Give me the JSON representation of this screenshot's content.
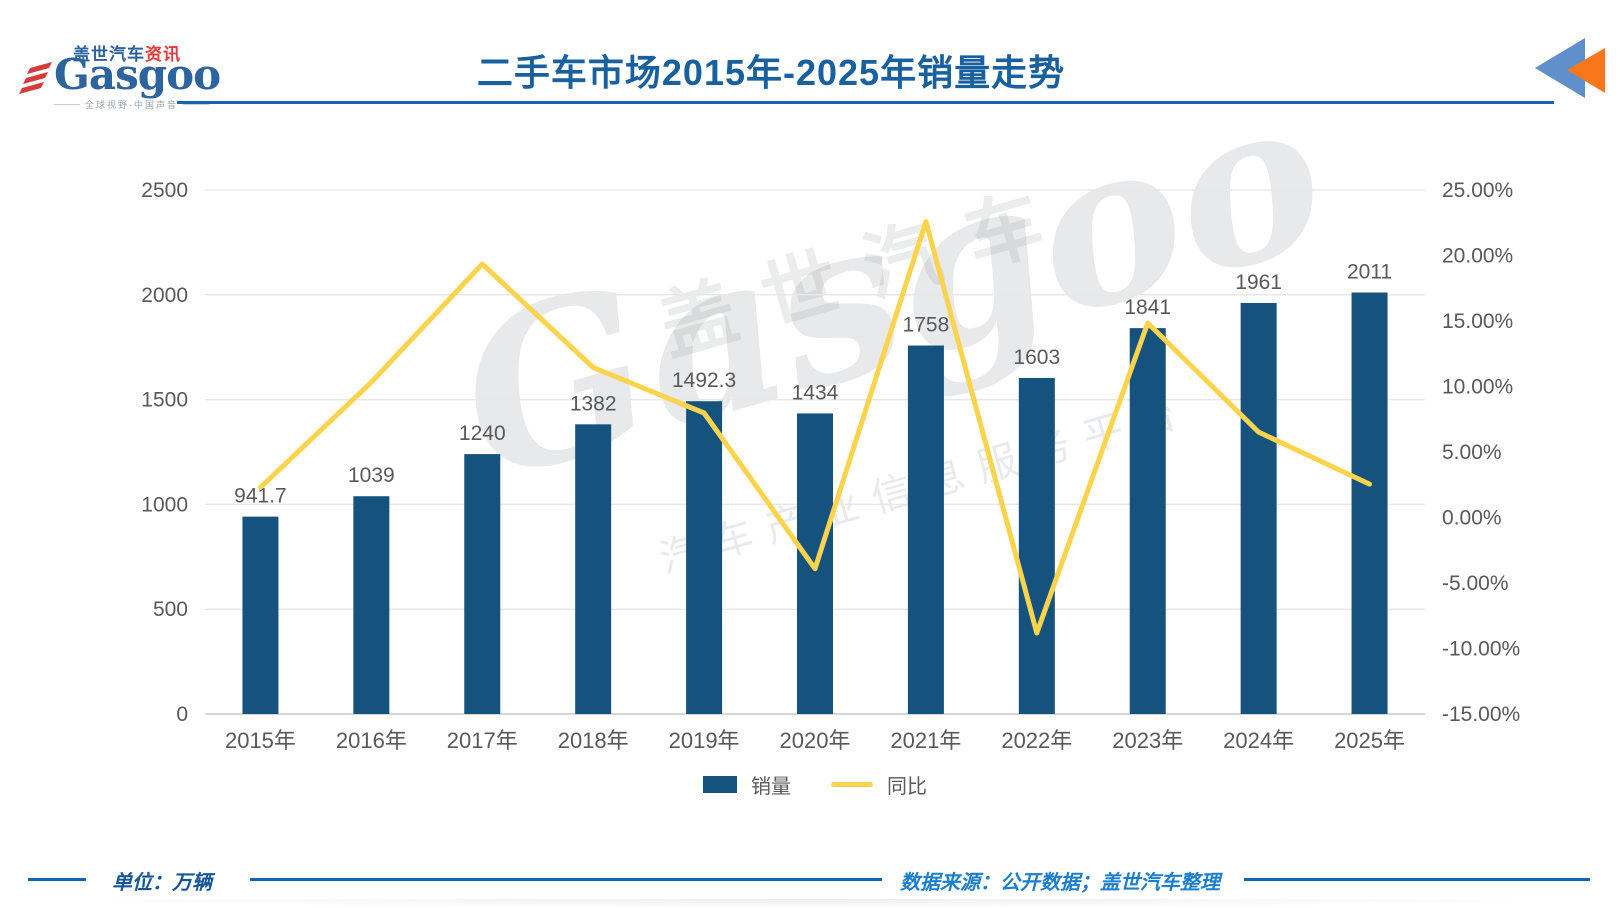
{
  "header": {
    "title": "二手车市场2015年-2025年销量走势",
    "logo": {
      "brand_cn": "盖世汽车",
      "brand_cn_suffix": "资讯",
      "brand_en": "Gasgoo",
      "tagline": "全球视野·中国声音"
    }
  },
  "chart_data": {
    "type": "bar",
    "subtype": "bar-line-combo",
    "title": "二手车市场2015年-2025年销量走势",
    "categories": [
      "2015年",
      "2016年",
      "2017年",
      "2018年",
      "2019年",
      "2020年",
      "2021年",
      "2022年",
      "2023年",
      "2024年",
      "2025年"
    ],
    "series": [
      {
        "name": "销量",
        "type": "bar",
        "axis": "left",
        "color": "#16527e",
        "values": [
          941.7,
          1039,
          1240,
          1382,
          1492.3,
          1434,
          1758,
          1603,
          1841,
          1961,
          2011
        ],
        "labels": [
          "941.7",
          "1039",
          "1240",
          "1382",
          "1492.3",
          "1434",
          "1758",
          "1603",
          "1841",
          "1961",
          "2011"
        ]
      },
      {
        "name": "同比",
        "type": "line",
        "axis": "right",
        "color": "#fcd34d",
        "values": [
          2.3,
          10.33,
          19.35,
          11.45,
          7.98,
          -3.91,
          22.59,
          -8.82,
          14.85,
          6.52,
          2.55
        ]
      }
    ],
    "left_axis": {
      "min": 0,
      "max": 2500,
      "step": 500,
      "ticks": [
        "0",
        "500",
        "1000",
        "1500",
        "2000",
        "2500"
      ]
    },
    "right_axis": {
      "min": -15,
      "max": 25,
      "step": 5,
      "ticks_top_down": [
        "25.00%",
        "20.00%",
        "15.00%",
        "10.00%",
        "5.00%",
        "0.00%",
        "-5.00%",
        "-10.00%",
        "-15.00%"
      ]
    },
    "grid": true,
    "legend_position": "bottom"
  },
  "legend": {
    "bar_label": "销量",
    "line_label": "同比"
  },
  "watermark": {
    "line1": "盖世汽车",
    "line2": "Gasgoo",
    "line3": "汽车产业信息服务平台"
  },
  "footer": {
    "unit": "单位：万辆",
    "source": "数据来源：公开数据；盖世汽车整理"
  },
  "colors": {
    "title": "#19609f",
    "rule": "#1565ae",
    "bar": "#16527e",
    "line": "#fcd34d",
    "tick_text": "#595959",
    "gridline": "#e8e8e8",
    "baseline": "#c9c9c9",
    "footer_unit_text": "#155696",
    "footer_source_text": "#1b7ece",
    "corner_triangle_blue": "#6090cc",
    "corner_triangle_orange": "#f9761a"
  }
}
